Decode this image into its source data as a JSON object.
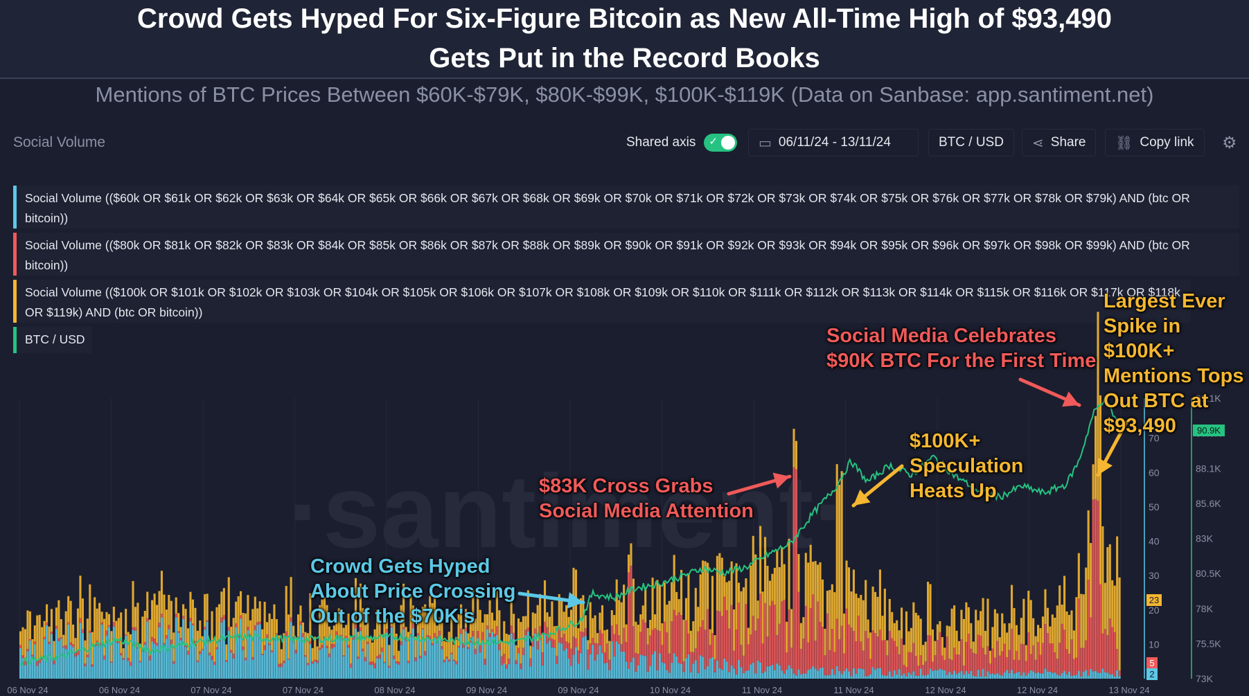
{
  "header": {
    "title_line1": "Crowd Gets Hyped For Six-Figure Bitcoin as New All-Time High of $93,490",
    "title_line2": "Gets Put in the Record Books",
    "subtitle": "Mentions of BTC Prices Between $60K-$79K, $80K-$99K, $100K-$119K (Data on Sanbase: app.santiment.net)"
  },
  "toolbar": {
    "widget_title": "Social Volume",
    "shared_axis_label": "Shared axis",
    "shared_axis_on": true,
    "date_range": "06/11/24 - 13/11/24",
    "pair": "BTC / USD",
    "share_label": "Share",
    "copy_link_label": "Copy link"
  },
  "legend": [
    {
      "label": "Social Volume (($60k OR $61k OR $62k OR $63k OR $64k OR $65k OR $66k OR $67k OR $68k OR $69k OR $70k OR $71k OR $72k OR $73k OR $74k OR $75k OR $76k OR $77k OR $78k OR $79k) AND (btc OR bitcoin))",
      "color": "#5cc8e6"
    },
    {
      "label": "Social Volume (($80k OR $81k OR $82k OR $83k OR $84k OR $85k OR $86k OR $87k OR $88k OR $89k OR $90k OR $91k OR $92k OR $93k OR $94k OR $95k OR $96k OR $97k OR $98k OR $99k) AND (btc OR bitcoin))",
      "color": "#f05a5a"
    },
    {
      "label": "Social Volume (($100k OR $101k OR $102k OR $103k OR $104k OR $105k OR $106k OR $107k OR $108k OR $109k OR $110k OR $111k OR $112k OR $113k OR $114k OR $115k OR $116k OR $117k OR $118k OR $119k) AND (btc OR bitcoin))",
      "color": "#f5b731"
    },
    {
      "label": "BTC / USD",
      "color": "#26c281"
    }
  ],
  "annotations": [
    {
      "lines": [
        "Crowd Gets Hyped",
        "About Price Crossing",
        "Out of the $70K's"
      ],
      "color": "#5cc8e6"
    },
    {
      "lines": [
        "$83K Cross Grabs",
        "Social Media Attention"
      ],
      "color": "#f05a5a"
    },
    {
      "lines": [
        "Social Media Celebrates",
        "$90K BTC For the First Time"
      ],
      "color": "#f05a5a"
    },
    {
      "lines": [
        "$100K+",
        "Speculation",
        "Heats Up"
      ],
      "color": "#f5b731"
    },
    {
      "lines": [
        "Largest Ever",
        "Spike in $100K+",
        "Mentions Tops",
        "Out BTC at",
        "$93,490"
      ],
      "color": "#f5b731"
    }
  ],
  "chart_data": {
    "type": "area",
    "x_ticks": [
      "06 Nov 24",
      "06 Nov 24",
      "07 Nov 24",
      "07 Nov 24",
      "08 Nov 24",
      "09 Nov 24",
      "09 Nov 24",
      "10 Nov 24",
      "11 Nov 24",
      "11 Nov 24",
      "12 Nov 24",
      "12 Nov 24",
      "13 Nov 24"
    ],
    "volume_axis": {
      "ticks": [
        10,
        20,
        30,
        40,
        50,
        60,
        70
      ],
      "ylim": [
        0,
        80
      ]
    },
    "price_axis": {
      "ticks": [
        "73K",
        "75.5K",
        "78K",
        "80.5K",
        "83K",
        "85.6K",
        "88.1K",
        "90.6K",
        "93.1K"
      ],
      "ylim": [
        73000,
        93100
      ]
    },
    "latest_values": {
      "volume_100k": "23",
      "volume_80k": "5",
      "volume_60k": "2",
      "price": "90.9K"
    },
    "btc_usd_path": [
      [
        0.0,
        74200
      ],
      [
        0.04,
        74600
      ],
      [
        0.07,
        75400
      ],
      [
        0.09,
        75800
      ],
      [
        0.12,
        75000
      ],
      [
        0.16,
        75600
      ],
      [
        0.2,
        76000
      ],
      [
        0.25,
        75800
      ],
      [
        0.3,
        75900
      ],
      [
        0.35,
        76000
      ],
      [
        0.4,
        75700
      ],
      [
        0.45,
        75600
      ],
      [
        0.48,
        76200
      ],
      [
        0.51,
        77200
      ],
      [
        0.52,
        79100
      ],
      [
        0.54,
        78800
      ],
      [
        0.56,
        79500
      ],
      [
        0.58,
        79800
      ],
      [
        0.6,
        80300
      ],
      [
        0.62,
        80900
      ],
      [
        0.64,
        80600
      ],
      [
        0.66,
        81000
      ],
      [
        0.68,
        81900
      ],
      [
        0.7,
        82700
      ],
      [
        0.705,
        83200
      ],
      [
        0.72,
        84800
      ],
      [
        0.74,
        86600
      ],
      [
        0.755,
        88600
      ],
      [
        0.77,
        87100
      ],
      [
        0.79,
        88300
      ],
      [
        0.81,
        87600
      ],
      [
        0.83,
        88900
      ],
      [
        0.85,
        87500
      ],
      [
        0.87,
        86500
      ],
      [
        0.89,
        86000
      ],
      [
        0.91,
        86800
      ],
      [
        0.93,
        86300
      ],
      [
        0.95,
        86900
      ],
      [
        0.962,
        88600
      ],
      [
        0.975,
        92000
      ],
      [
        0.985,
        93100
      ],
      [
        0.992,
        92100
      ],
      [
        1.0,
        90900
      ]
    ],
    "volume_series": [
      {
        "name": "$60K-$79K",
        "shape": [
          [
            0.0,
            10
          ],
          [
            0.1,
            12
          ],
          [
            0.2,
            12
          ],
          [
            0.3,
            10
          ],
          [
            0.4,
            10
          ],
          [
            0.5,
            9
          ],
          [
            0.6,
            5
          ],
          [
            0.7,
            3
          ],
          [
            0.8,
            2
          ],
          [
            0.9,
            2
          ],
          [
            1.0,
            2
          ]
        ]
      },
      {
        "name": "$80K-$99K",
        "shape": [
          [
            0.0,
            1
          ],
          [
            0.4,
            1
          ],
          [
            0.5,
            4
          ],
          [
            0.55,
            6
          ],
          [
            0.6,
            10
          ],
          [
            0.7,
            16
          ],
          [
            0.75,
            12
          ],
          [
            0.8,
            8
          ],
          [
            0.9,
            8
          ],
          [
            0.96,
            10
          ],
          [
            0.98,
            38
          ],
          [
            1.0,
            5
          ]
        ]
      },
      {
        "name": "$100K-$119K",
        "shape": [
          [
            0.0,
            9
          ],
          [
            0.2,
            10
          ],
          [
            0.4,
            9
          ],
          [
            0.5,
            8
          ],
          [
            0.55,
            9
          ],
          [
            0.6,
            12
          ],
          [
            0.7,
            18
          ],
          [
            0.74,
            14
          ],
          [
            0.8,
            11
          ],
          [
            0.9,
            10
          ],
          [
            0.96,
            12
          ],
          [
            0.98,
            25
          ],
          [
            1.0,
            23
          ]
        ]
      }
    ]
  }
}
